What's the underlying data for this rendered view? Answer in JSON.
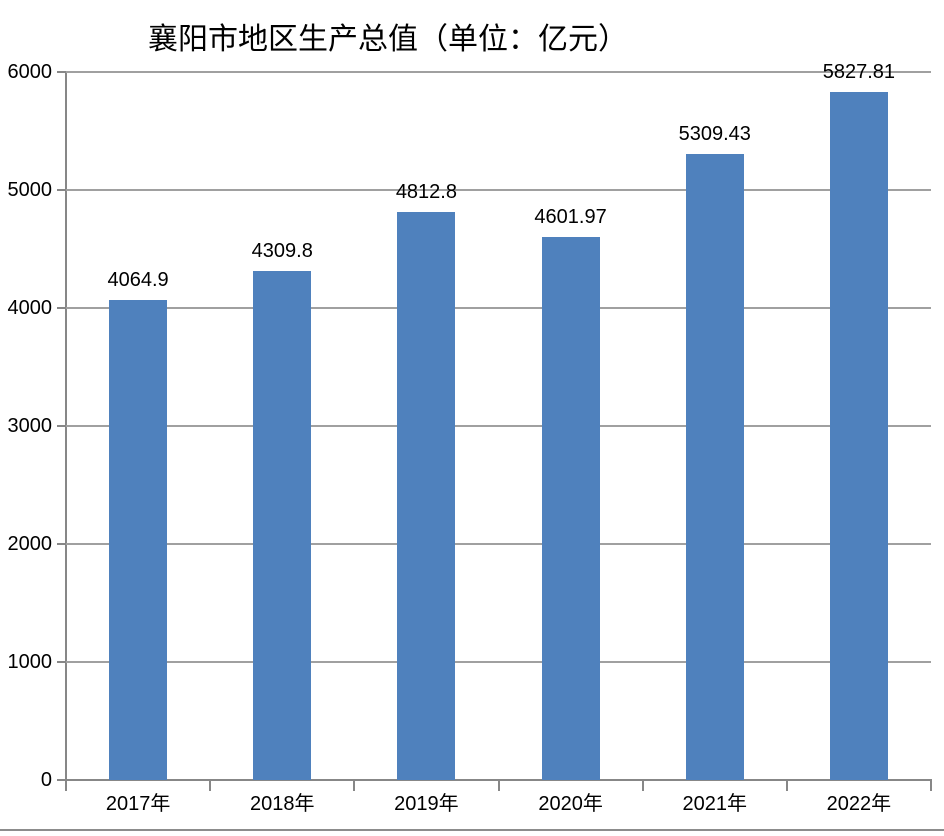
{
  "page": {
    "background_color": "#FFFFFF",
    "bottom_rule_color": "#8C8C8C"
  },
  "chart_data": {
    "type": "bar",
    "title": "襄阳市地区生产总值（单位：亿元）",
    "categories": [
      "2017年",
      "2018年",
      "2019年",
      "2020年",
      "2021年",
      "2022年"
    ],
    "values": [
      4064.9,
      4309.8,
      4812.8,
      4601.97,
      5309.43,
      5827.81
    ],
    "value_labels": [
      "4064.9",
      "4309.8",
      "4812.8",
      "4601.97",
      "5309.43",
      "5827.81"
    ],
    "xlabel": "",
    "ylabel": "",
    "ylim": [
      0,
      6000
    ],
    "y_tick_step": 1000,
    "y_tick_labels": [
      "0",
      "1000",
      "2000",
      "3000",
      "4000",
      "5000",
      "6000"
    ],
    "grid": true,
    "legend_position": "none",
    "bar_color": "#4F81BD",
    "gridline_color": "#A0A0A0",
    "axis_color": "#878787",
    "text_color": "#000000"
  }
}
